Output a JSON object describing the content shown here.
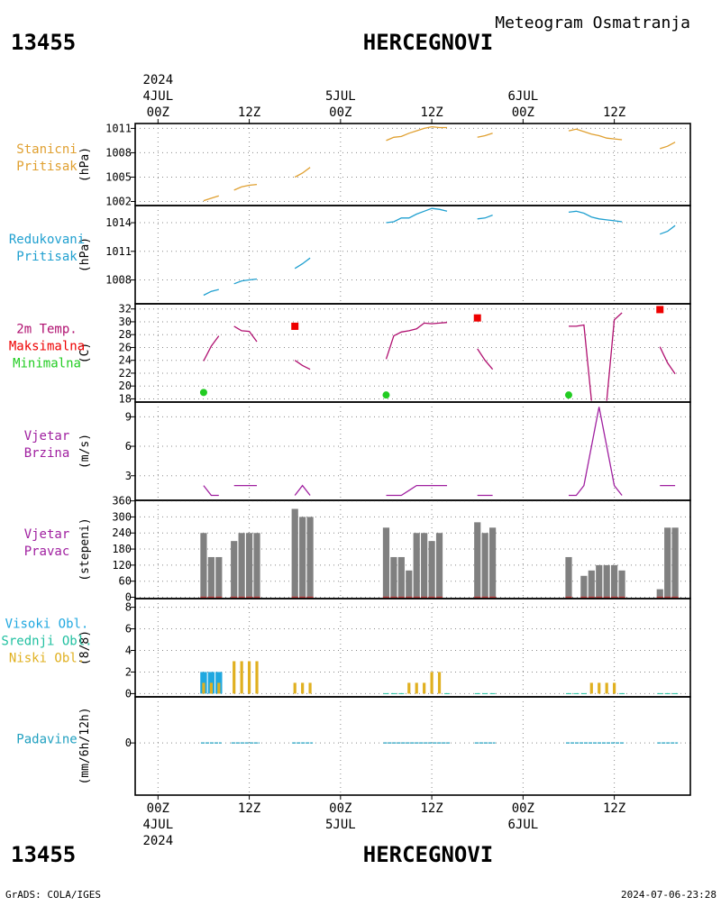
{
  "header": {
    "station_id": "13455",
    "station_name": "HERCEGNOVI",
    "subtitle": "Meteogram Osmatranja"
  },
  "footer": {
    "station_id": "13455",
    "station_name": "HERCEGNOVI",
    "credit": "GrADS: COLA/IGES",
    "timestamp": "2024-07-06-23:28"
  },
  "time_axis": {
    "year": "2024",
    "ticks": [
      {
        "hour": 0,
        "label": "00Z",
        "date": "4JUL"
      },
      {
        "hour": 12,
        "label": "12Z",
        "date": ""
      },
      {
        "hour": 24,
        "label": "00Z",
        "date": "5JUL"
      },
      {
        "hour": 36,
        "label": "12Z",
        "date": ""
      },
      {
        "hour": 48,
        "label": "00Z",
        "date": "6JUL"
      },
      {
        "hour": 60,
        "label": "12Z",
        "date": ""
      }
    ],
    "range_hours": [
      -3,
      70
    ]
  },
  "colors": {
    "station_pressure": "#e0a030",
    "reduced_pressure": "#20a0d0",
    "temperature": "#b01070",
    "maximum": "#ee0000",
    "minimum": "#22cc22",
    "wind": "#a020a0",
    "wind_dir_bar": "#808080",
    "wind_dir_base": "#c04040",
    "high_cloud": "#20a8e0",
    "mid_cloud": "#20c0a0",
    "low_cloud": "#e0b020",
    "precip": "#20a0c0"
  },
  "chart_data": [
    {
      "type": "line",
      "key": "station_pressure",
      "labels": [
        "Stanicni",
        "Pritisak"
      ],
      "ylabel": "(hPa)",
      "ylim": [
        1001.5,
        1011.6
      ],
      "yticks": [
        1002,
        1005,
        1008,
        1011
      ],
      "segments": [
        [
          [
            6,
            1002.1
          ],
          [
            7,
            1002.4
          ],
          [
            8,
            1002.7
          ]
        ],
        [
          [
            10,
            1003.4
          ],
          [
            11,
            1003.8
          ],
          [
            12,
            1004.0
          ],
          [
            13,
            1004.1
          ]
        ],
        [
          [
            18,
            1005.0
          ],
          [
            19,
            1005.5
          ],
          [
            20,
            1006.2
          ]
        ],
        [
          [
            30,
            1009.5
          ],
          [
            31,
            1009.9
          ],
          [
            32,
            1010.0
          ],
          [
            33,
            1010.4
          ],
          [
            34,
            1010.7
          ],
          [
            35,
            1011.0
          ],
          [
            36,
            1011.2
          ],
          [
            37,
            1011.1
          ],
          [
            38,
            1011.1
          ]
        ],
        [
          [
            42,
            1009.9
          ],
          [
            43,
            1010.1
          ],
          [
            44,
            1010.4
          ]
        ],
        [
          [
            54,
            1010.7
          ],
          [
            55,
            1010.9
          ],
          [
            56,
            1010.6
          ],
          [
            57,
            1010.3
          ],
          [
            58,
            1010.1
          ],
          [
            59,
            1009.8
          ],
          [
            60,
            1009.7
          ],
          [
            61,
            1009.6
          ]
        ],
        [
          [
            66,
            1008.5
          ],
          [
            67,
            1008.8
          ],
          [
            68,
            1009.3
          ]
        ]
      ]
    },
    {
      "type": "line",
      "key": "reduced_pressure",
      "labels": [
        "Redukovani",
        "Pritisak"
      ],
      "ylabel": "(hPa)",
      "ylim": [
        1005.5,
        1015.8
      ],
      "yticks": [
        1008,
        1011,
        1014
      ],
      "segments": [
        [
          [
            6,
            1006.4
          ],
          [
            7,
            1006.8
          ],
          [
            8,
            1007.0
          ]
        ],
        [
          [
            10,
            1007.6
          ],
          [
            11,
            1007.9
          ],
          [
            12,
            1008.0
          ],
          [
            13,
            1008.1
          ]
        ],
        [
          [
            18,
            1009.2
          ],
          [
            19,
            1009.7
          ],
          [
            20,
            1010.3
          ]
        ],
        [
          [
            30,
            1014.0
          ],
          [
            31,
            1014.1
          ],
          [
            32,
            1014.5
          ],
          [
            33,
            1014.5
          ],
          [
            34,
            1014.9
          ],
          [
            35,
            1015.2
          ],
          [
            36,
            1015.5
          ],
          [
            37,
            1015.4
          ],
          [
            38,
            1015.2
          ]
        ],
        [
          [
            42,
            1014.4
          ],
          [
            43,
            1014.5
          ],
          [
            44,
            1014.8
          ]
        ],
        [
          [
            54,
            1015.1
          ],
          [
            55,
            1015.2
          ],
          [
            56,
            1015.0
          ],
          [
            57,
            1014.6
          ],
          [
            58,
            1014.4
          ],
          [
            59,
            1014.3
          ],
          [
            60,
            1014.2
          ],
          [
            61,
            1014.1
          ]
        ],
        [
          [
            66,
            1012.8
          ],
          [
            67,
            1013.1
          ],
          [
            68,
            1013.7
          ]
        ]
      ]
    },
    {
      "type": "line",
      "key": "temperature",
      "labels": [
        "2m Temp.",
        "Maksimalna",
        "Minimalna"
      ],
      "ylabel": "(C)",
      "ylim": [
        17.5,
        32.8
      ],
      "yticks": [
        18,
        20,
        22,
        24,
        26,
        28,
        30,
        32
      ],
      "segments": [
        [
          [
            6,
            23.9
          ],
          [
            7,
            26.2
          ],
          [
            8,
            27.8
          ]
        ],
        [
          [
            10,
            29.3
          ],
          [
            11,
            28.6
          ],
          [
            12,
            28.5
          ],
          [
            13,
            26.9
          ]
        ],
        [
          [
            18,
            24.0
          ],
          [
            19,
            23.2
          ],
          [
            20,
            22.6
          ]
        ],
        [
          [
            30,
            24.2
          ],
          [
            31,
            27.8
          ],
          [
            32,
            28.4
          ],
          [
            33,
            28.6
          ],
          [
            34,
            28.9
          ],
          [
            35,
            29.8
          ],
          [
            36,
            29.7
          ],
          [
            37,
            29.8
          ],
          [
            38,
            29.9
          ]
        ],
        [
          [
            42,
            25.8
          ],
          [
            43,
            24.0
          ],
          [
            44,
            22.6
          ]
        ],
        [
          [
            54,
            29.3
          ],
          [
            55,
            29.3
          ],
          [
            56,
            29.5
          ],
          [
            57,
            17.7
          ]
        ],
        [
          [
            59,
            17.7
          ],
          [
            60,
            30.3
          ],
          [
            61,
            31.4
          ]
        ],
        [
          [
            66,
            26.1
          ],
          [
            67,
            23.6
          ],
          [
            68,
            21.9
          ]
        ]
      ],
      "maxima": [
        [
          18,
          29.3
        ],
        [
          42,
          30.6
        ],
        [
          66,
          31.9
        ]
      ],
      "minima": [
        [
          6,
          19.0
        ],
        [
          30,
          18.6
        ],
        [
          54,
          18.6
        ]
      ]
    },
    {
      "type": "line",
      "key": "wind_speed",
      "labels": [
        "Vjetar",
        "Brzina"
      ],
      "ylabel": "(m/s)",
      "ylim": [
        0.5,
        10.5
      ],
      "yticks": [
        3,
        6,
        9
      ],
      "segments": [
        [
          [
            6,
            2.0
          ],
          [
            7,
            1.0
          ],
          [
            8,
            1.0
          ]
        ],
        [
          [
            10,
            2.0
          ],
          [
            11,
            2.0
          ],
          [
            12,
            2.0
          ],
          [
            13,
            2.0
          ]
        ],
        [
          [
            18,
            1.0
          ],
          [
            19,
            2.0
          ],
          [
            20,
            1.0
          ]
        ],
        [
          [
            30,
            1.0
          ],
          [
            31,
            1.0
          ],
          [
            32,
            1.0
          ],
          [
            33,
            1.5
          ],
          [
            34,
            2.0
          ],
          [
            35,
            2.0
          ],
          [
            36,
            2.0
          ],
          [
            37,
            2.0
          ],
          [
            38,
            2.0
          ]
        ],
        [
          [
            42,
            1.0
          ],
          [
            43,
            1.0
          ],
          [
            44,
            1.0
          ]
        ],
        [
          [
            54,
            1.0
          ],
          [
            55,
            1.0
          ],
          [
            56,
            2.0
          ],
          [
            57,
            6.0
          ],
          [
            58,
            10.0
          ],
          [
            59,
            6.0
          ],
          [
            60,
            2.0
          ],
          [
            61,
            1.0
          ]
        ],
        [
          [
            66,
            2.0
          ],
          [
            67,
            2.0
          ],
          [
            68,
            2.0
          ]
        ]
      ]
    },
    {
      "type": "bar",
      "key": "wind_direction",
      "labels": [
        "Vjetar",
        "Pravac"
      ],
      "ylabel": "(stepeni)",
      "ylim": [
        -5,
        362
      ],
      "yticks": [
        0,
        60,
        120,
        180,
        240,
        300,
        360
      ],
      "bars": [
        [
          6,
          240
        ],
        [
          7,
          150
        ],
        [
          8,
          150
        ],
        [
          10,
          210
        ],
        [
          11,
          240
        ],
        [
          12,
          240
        ],
        [
          13,
          240
        ],
        [
          18,
          330
        ],
        [
          19,
          300
        ],
        [
          20,
          300
        ],
        [
          30,
          260
        ],
        [
          31,
          150
        ],
        [
          32,
          150
        ],
        [
          33,
          100
        ],
        [
          34,
          240
        ],
        [
          35,
          240
        ],
        [
          36,
          210
        ],
        [
          37,
          240
        ],
        [
          42,
          280
        ],
        [
          43,
          240
        ],
        [
          44,
          260
        ],
        [
          54,
          150
        ],
        [
          56,
          80
        ],
        [
          57,
          100
        ],
        [
          58,
          120
        ],
        [
          59,
          120
        ],
        [
          60,
          120
        ],
        [
          61,
          100
        ],
        [
          66,
          30
        ],
        [
          67,
          260
        ],
        [
          68,
          260
        ]
      ]
    },
    {
      "type": "bar",
      "key": "clouds",
      "labels": [
        "Visoki Obl.",
        "Srednji Obl.",
        "Niski Obl."
      ],
      "ylabel": "(8/8)",
      "ylim": [
        -0.3,
        8.8
      ],
      "yticks": [
        0,
        2,
        4,
        6,
        8
      ],
      "high": [
        [
          6,
          2
        ],
        [
          7,
          2
        ],
        [
          8,
          2
        ]
      ],
      "low": [
        [
          6,
          1
        ],
        [
          7,
          1
        ],
        [
          8,
          1
        ],
        [
          10,
          3
        ],
        [
          11,
          3
        ],
        [
          12,
          3
        ],
        [
          13,
          3
        ],
        [
          18,
          1
        ],
        [
          19,
          1
        ],
        [
          20,
          1
        ],
        [
          33,
          1
        ],
        [
          34,
          1
        ],
        [
          35,
          1
        ],
        [
          36,
          2
        ],
        [
          37,
          2
        ],
        [
          57,
          1
        ],
        [
          58,
          1
        ],
        [
          59,
          1
        ],
        [
          60,
          1
        ]
      ],
      "trace_hours": [
        30,
        31,
        32,
        38,
        42,
        43,
        44,
        54,
        55,
        56,
        61,
        66,
        67,
        68
      ]
    },
    {
      "type": "bar",
      "key": "precipitation",
      "labels": [
        "Padavine"
      ],
      "ylabel": "(mm/6h/12h)",
      "ylim": [
        -6,
        5.3
      ],
      "yticks": [
        0
      ],
      "trace_segments": [
        [
          6,
          8
        ],
        [
          10,
          13
        ],
        [
          18,
          20
        ],
        [
          30,
          38
        ],
        [
          42,
          44
        ],
        [
          54,
          61
        ],
        [
          66,
          68
        ]
      ]
    }
  ]
}
